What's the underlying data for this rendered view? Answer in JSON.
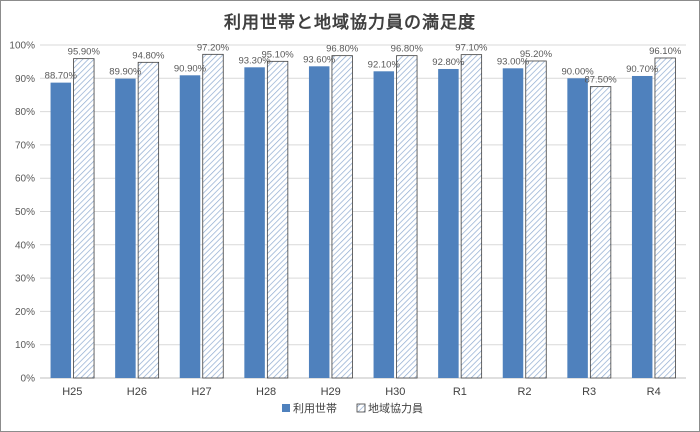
{
  "chart_data": {
    "type": "bar",
    "title": "利用世帯と地域協力員の満足度",
    "categories": [
      "H25",
      "H26",
      "H27",
      "H28",
      "H29",
      "H30",
      "R1",
      "R2",
      "R3",
      "R4"
    ],
    "series": [
      {
        "name": "利用世帯",
        "values": [
          88.7,
          89.9,
          90.9,
          93.3,
          93.6,
          92.1,
          92.8,
          93.0,
          90.0,
          90.7
        ],
        "labels": [
          "88.70%",
          "89.90%",
          "90.90%",
          "93.30%",
          "93.60%",
          "92.10%",
          "92.80%",
          "93.00%",
          "90.00%",
          "90.70%"
        ],
        "color": "#4f81bd"
      },
      {
        "name": "地域協力員",
        "values": [
          95.9,
          94.8,
          97.2,
          95.1,
          96.8,
          96.8,
          97.1,
          95.2,
          87.5,
          96.1
        ],
        "labels": [
          "95.90%",
          "94.80%",
          "97.20%",
          "95.10%",
          "96.80%",
          "96.80%",
          "97.10%",
          "95.20%",
          "87.50%",
          "96.10%"
        ],
        "color": "#dce6f2",
        "pattern": "diagonal-hatch"
      }
    ],
    "ylim": [
      0,
      100
    ],
    "yticks": [
      "0%",
      "10%",
      "20%",
      "30%",
      "40%",
      "50%",
      "60%",
      "70%",
      "80%",
      "90%",
      "100%"
    ],
    "grid": true,
    "legend": "bottom"
  }
}
